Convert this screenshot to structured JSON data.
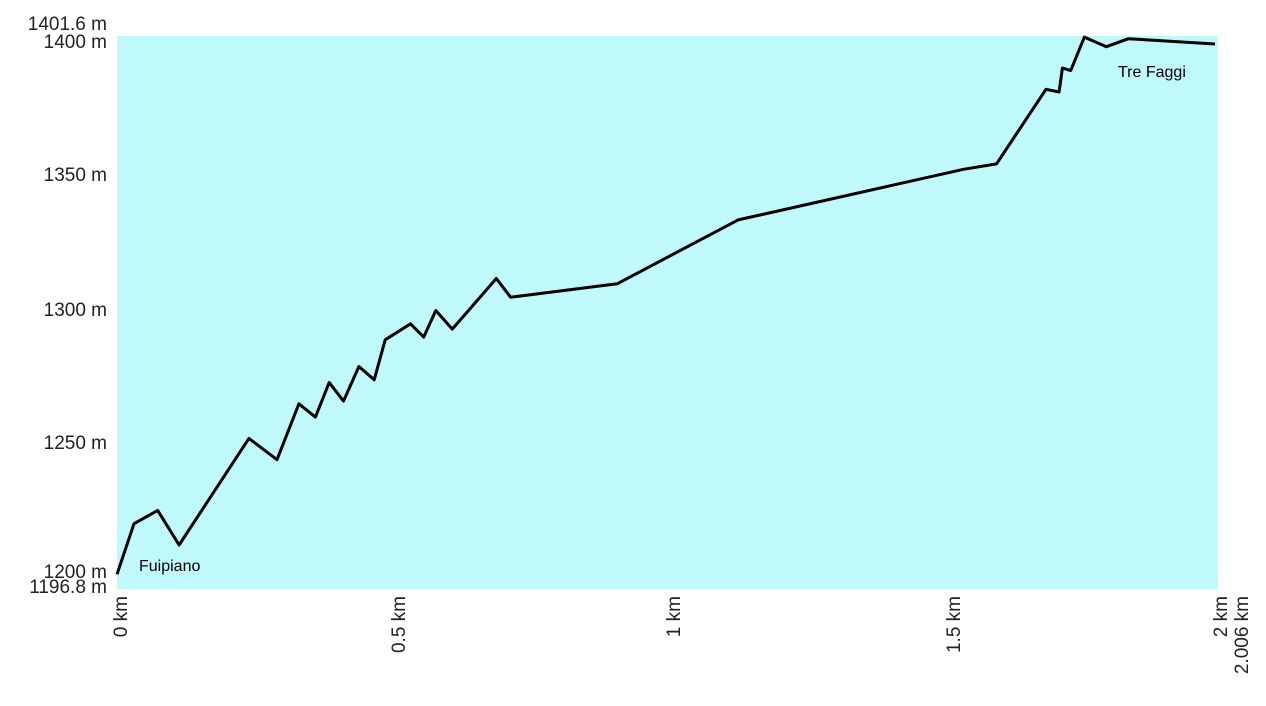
{
  "chart_data": {
    "type": "area",
    "title": "",
    "xlabel": "",
    "ylabel": "",
    "xlim": [
      0,
      2.006
    ],
    "ylim": [
      1196.8,
      1401.6
    ],
    "x_ticks": [
      {
        "value": 0,
        "label": "0 km"
      },
      {
        "value": 0.5,
        "label": "0.5 km"
      },
      {
        "value": 1,
        "label": "1 km"
      },
      {
        "value": 1.5,
        "label": "1.5 km"
      },
      {
        "value": 2,
        "label": "2 km"
      },
      {
        "value": 2.006,
        "label": "2.006 km"
      }
    ],
    "y_ticks": [
      {
        "value": 1196.8,
        "label": "1196.8 m"
      },
      {
        "value": 1200,
        "label": "1200 m"
      },
      {
        "value": 1250,
        "label": "1250 m"
      },
      {
        "value": 1300,
        "label": "1300 m"
      },
      {
        "value": 1350,
        "label": "1350 m"
      },
      {
        "value": 1400,
        "label": "1400 m"
      },
      {
        "value": 1401.6,
        "label": "1401.6 m"
      }
    ],
    "fill_color": "#bff9fc",
    "line_color": "#000000",
    "series": [
      {
        "x": [
          0,
          0.031,
          0.074,
          0.113,
          0.24,
          0.291,
          0.331,
          0.361,
          0.386,
          0.412,
          0.44,
          0.468,
          0.488,
          0.534,
          0.558,
          0.58,
          0.61,
          0.69,
          0.716,
          0.91,
          1.13,
          1.54,
          1.6,
          1.69,
          1.714,
          1.72,
          1.735,
          1.76,
          1.8,
          1.84,
          2.006
        ],
        "y": [
          1198,
          1217,
          1222,
          1209,
          1249,
          1241,
          1262,
          1257,
          1270,
          1263,
          1276,
          1271,
          1286,
          1292,
          1287,
          1297,
          1290,
          1309,
          1302,
          1307,
          1331,
          1350,
          1352,
          1380,
          1379,
          1388,
          1387,
          1399.6,
          1396,
          1399,
          1397
        ]
      }
    ],
    "annotations": [
      {
        "text": "Fuipiano",
        "x": 0.05,
        "y": 1203
      },
      {
        "text": "Tre Faggi",
        "x": 1.8,
        "y": 1391
      }
    ]
  }
}
